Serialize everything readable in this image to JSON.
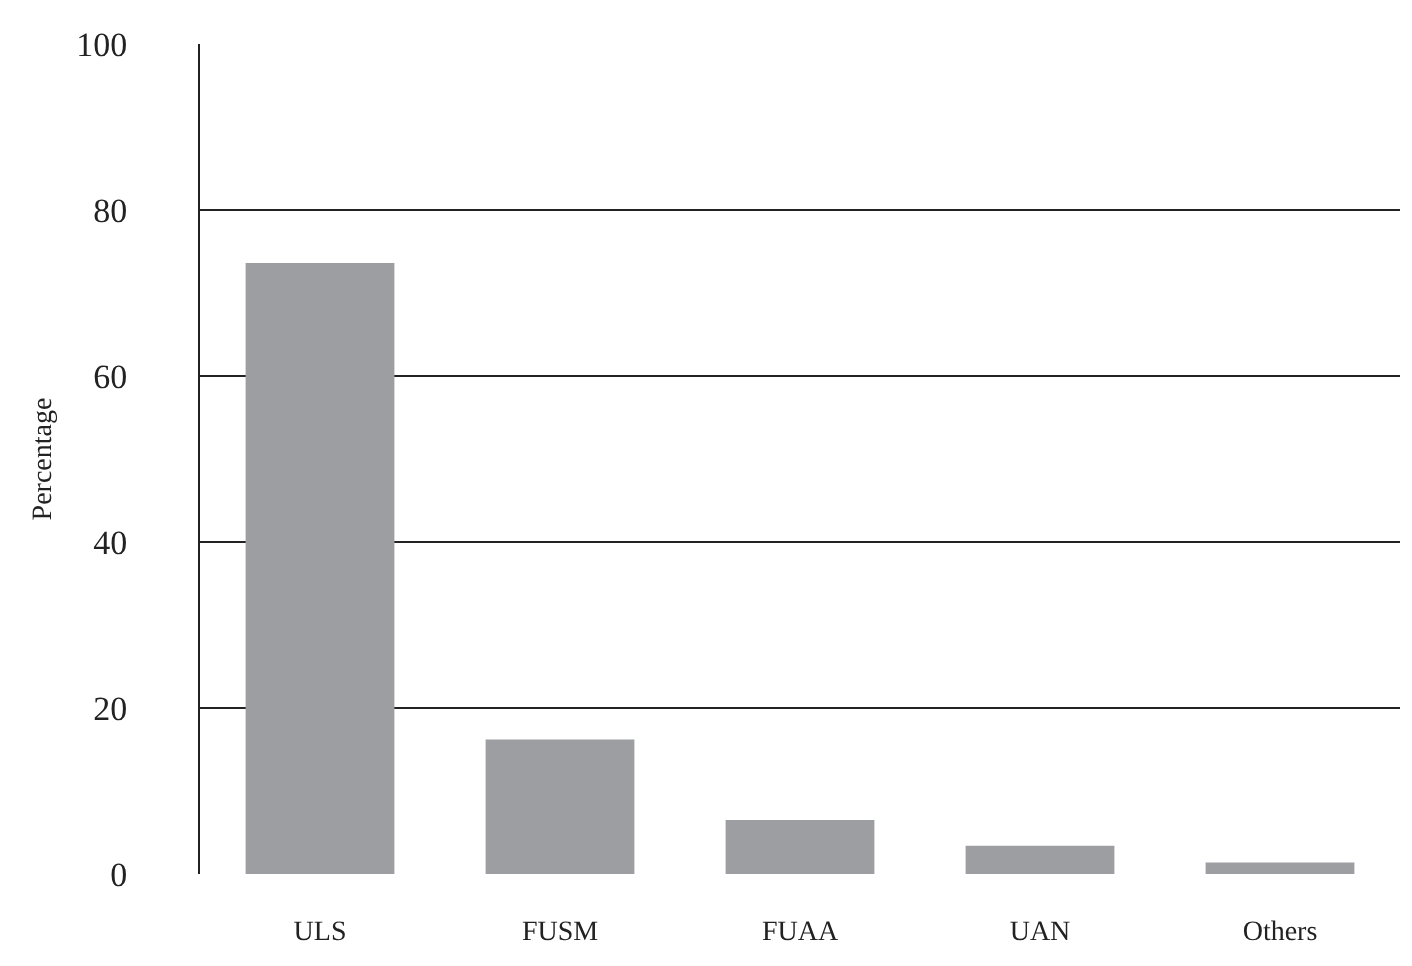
{
  "chart_data": {
    "type": "bar",
    "ylabel": "Percentage",
    "categories": [
      "ULS",
      "FUSM",
      "FUAA",
      "UAN",
      "Others"
    ],
    "values": [
      73.6,
      16.2,
      6.5,
      3.4,
      1.4
    ],
    "color": "#9d9ea2",
    "ylim": [
      0,
      100
    ],
    "yticks": [
      0,
      20,
      40,
      60,
      80,
      100
    ],
    "grid": "y",
    "legend": false
  }
}
